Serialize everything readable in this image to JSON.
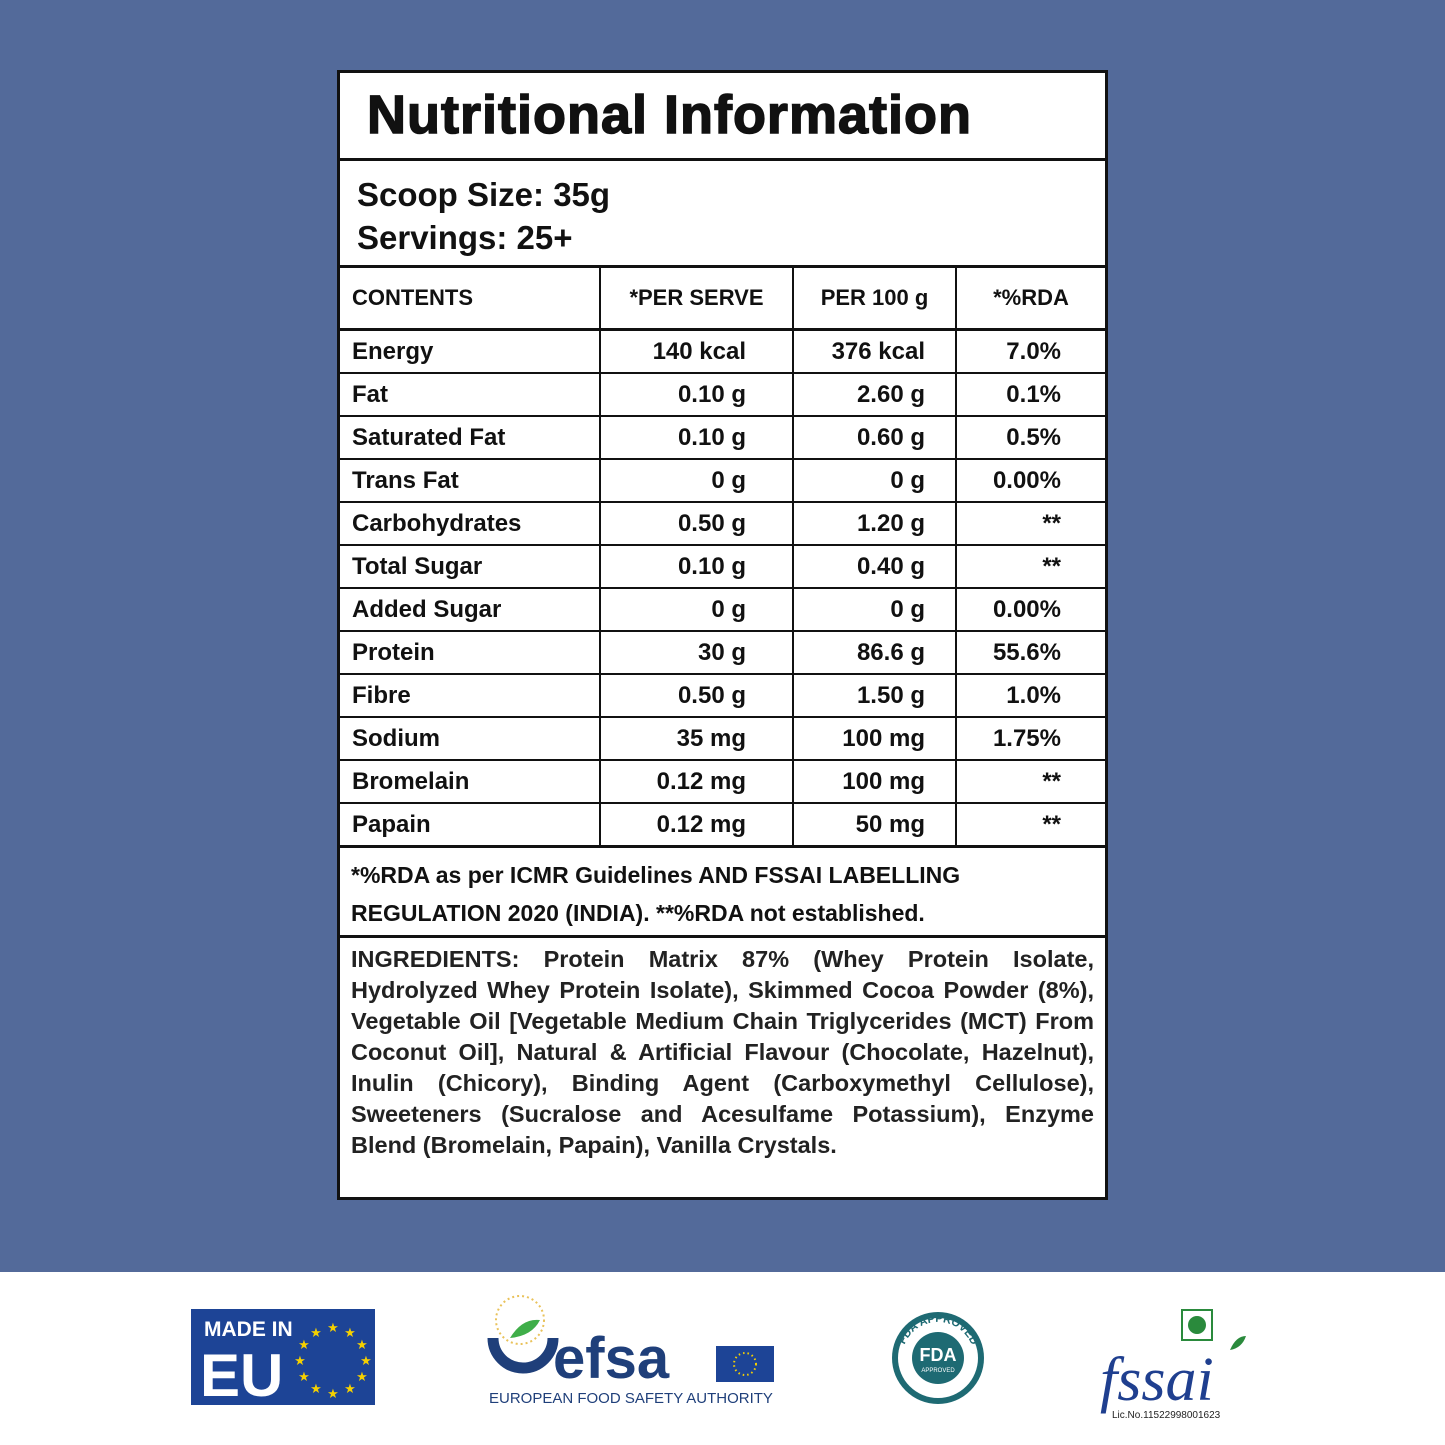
{
  "header": {
    "title": "Nutritional Information"
  },
  "serving": {
    "scoop_size": "Scoop Size: 35g",
    "servings": "Servings: 25+"
  },
  "table": {
    "columns": [
      "CONTENTS",
      "*PER SERVE",
      "PER 100 g",
      "*%RDA"
    ],
    "rows": [
      [
        "Energy",
        "140 kcal",
        "376 kcal",
        "7.0%"
      ],
      [
        "Fat",
        "0.10 g",
        "2.60 g",
        "0.1%"
      ],
      [
        "Saturated Fat",
        "0.10 g",
        "0.60 g",
        "0.5%"
      ],
      [
        "Trans Fat",
        "0 g",
        "0 g",
        "0.00%"
      ],
      [
        "Carbohydrates",
        "0.50 g",
        "1.20 g",
        "**"
      ],
      [
        "Total Sugar",
        "0.10 g",
        "0.40 g",
        "**"
      ],
      [
        "Added Sugar",
        "0 g",
        "0 g",
        "0.00%"
      ],
      [
        "Protein",
        "30 g",
        "86.6 g",
        "55.6%"
      ],
      [
        "Fibre",
        "0.50 g",
        "1.50 g",
        "1.0%"
      ],
      [
        "Sodium",
        "35 mg",
        "100 mg",
        "1.75%"
      ],
      [
        "Bromelain",
        "0.12 mg",
        "100 mg",
        "**"
      ],
      [
        "Papain",
        "0.12 mg",
        "50 mg",
        "**"
      ]
    ]
  },
  "footnote": [
    "*%RDA as per ICMR Guidelines AND FSSAI LABELLING",
    "REGULATION 2020 (INDIA). **%RDA not established."
  ],
  "ingredients": "INGREDIENTS: Protein Matrix 87% (Whey Protein Isolate, Hydrolyzed Whey Protein Isolate), Skimmed Cocoa Powder (8%), Vegetable Oil [Vegetable Medium Chain Triglycerides (MCT) From Coconut Oil], Natural & Artificial Flavour (Chocolate, Hazelnut), Inulin (Chicory), Binding Agent (Carboxymethyl Cellulose), Sweeteners (Sucralose and Acesulfame Potassium), Enzyme Blend (Bromelain, Papain), Vanilla Crystals.",
  "logos": {
    "eu": {
      "line1": "MADE IN",
      "line2": "EU"
    },
    "efsa": {
      "name": "efsa",
      "caption": "EUROPEAN FOOD SAFETY AUTHORITY"
    },
    "fda": {
      "ring": "FDA APPROVED",
      "center": "FDA",
      "sub": "APPROVED"
    },
    "fssai": {
      "name": "fssai",
      "license": "Lic.No.11522998001623"
    }
  }
}
